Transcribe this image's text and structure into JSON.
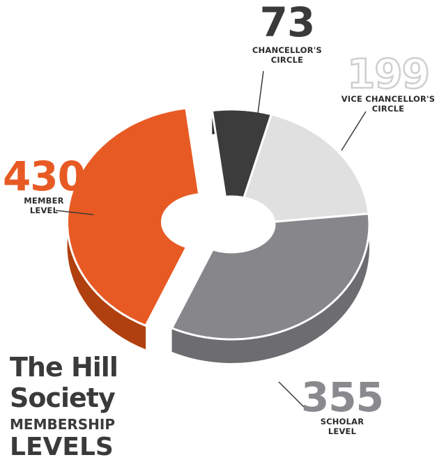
{
  "title": {
    "line1": "The Hill",
    "line2": "Society",
    "line3": "MEMBERSHIP",
    "line4": "LEVELS"
  },
  "chart_data": {
    "type": "pie",
    "style": "3d-donut",
    "series": [
      {
        "value": 73,
        "label_lines": [
          "CHANCELLOR'S",
          "CIRCLE"
        ],
        "color": "#3c3c3c",
        "side_color": "#262626",
        "exploded": false
      },
      {
        "value": 199,
        "label_lines": [
          "VICE CHANCELLOR'S",
          "CIRCLE"
        ],
        "color": "#e0e0e1",
        "side_color": "#a8a8ab",
        "exploded": false
      },
      {
        "value": 355,
        "label_lines": [
          "SCHOLAR",
          "LEVEL"
        ],
        "color": "#87878b",
        "side_color": "#6d6d71",
        "exploded": false
      },
      {
        "value": 430,
        "label_lines": [
          "MEMBER",
          "LEVEL"
        ],
        "color": "#e85a24",
        "side_color": "#b0400f",
        "exploded": true
      }
    ],
    "value_colors": [
      "#3a3a3a",
      "#d9d9d9",
      "#8a8a8e",
      "#e85a24"
    ],
    "title_color": "#3a3a3a"
  }
}
